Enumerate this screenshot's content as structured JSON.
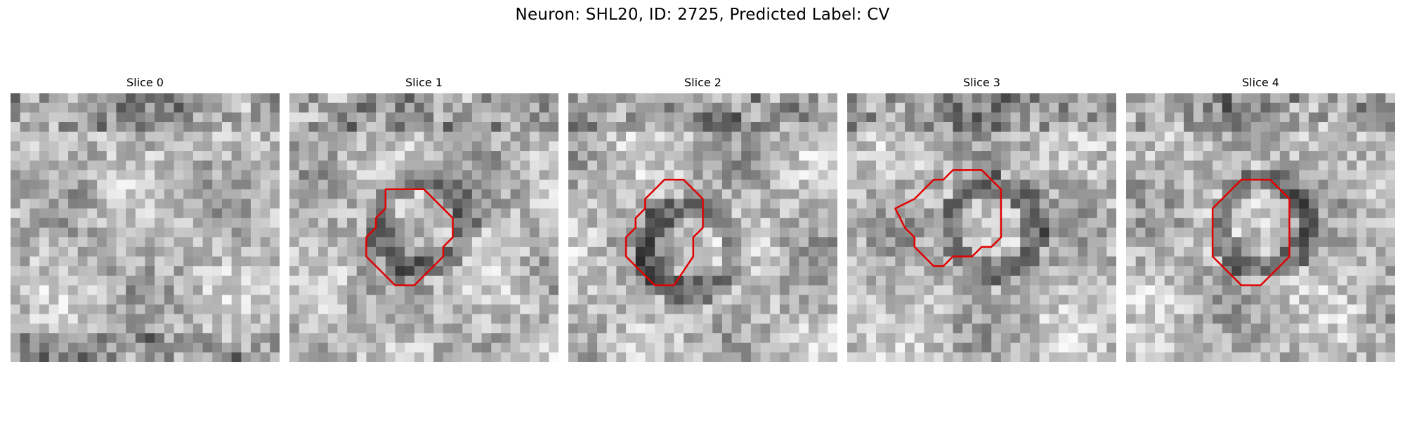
{
  "figure": {
    "title": "Neuron: SHL20, ID: 2725, Predicted Label: CV"
  },
  "panels": [
    {
      "title": "Slice 0",
      "seed": 11,
      "contour": false
    },
    {
      "title": "Slice 1",
      "seed": 27,
      "contour": true
    },
    {
      "title": "Slice 2",
      "seed": 43,
      "contour": true
    },
    {
      "title": "Slice 3",
      "seed": 59,
      "contour": true
    },
    {
      "title": "Slice 4",
      "seed": 71,
      "contour": true
    }
  ],
  "grid": {
    "rows": 28,
    "cols": 28
  },
  "colors": {
    "contour": "#e00000",
    "colormap": "gray"
  }
}
